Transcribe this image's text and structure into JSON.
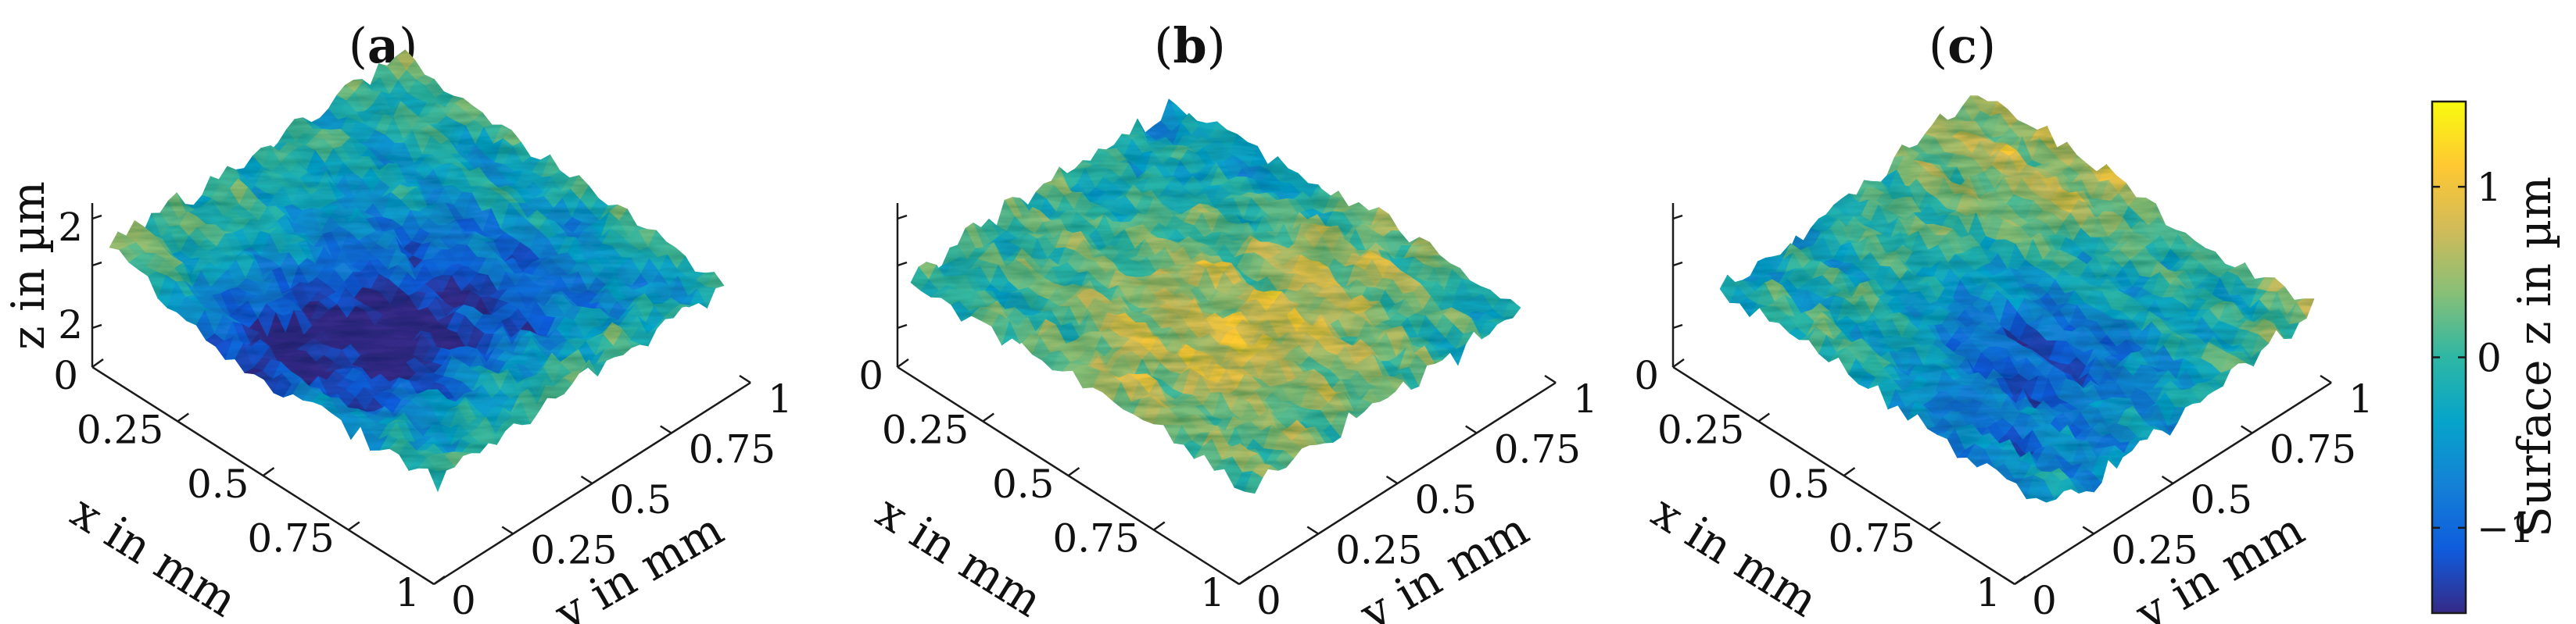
{
  "chart_data": [
    {
      "type": "surface3d",
      "panel_label": "a",
      "xlabel": "x in mm",
      "ylabel": "y in mm",
      "zlabel": "z in µm",
      "x_ticks": [
        "0",
        "0.25",
        "0.5",
        "0.75",
        "1"
      ],
      "y_ticks": [
        "0",
        "0.25",
        "0.5",
        "0.75",
        "1"
      ],
      "z_ticks": [
        "2",
        "2"
      ],
      "xlim": [
        0,
        1
      ],
      "ylim": [
        0,
        1
      ],
      "z_range_um": [
        -1.5,
        1.5
      ]
    },
    {
      "type": "surface3d",
      "panel_label": "b",
      "xlabel": "x in mm",
      "ylabel": "y in mm",
      "zlabel": "",
      "x_ticks": [
        "0",
        "0.25",
        "0.5",
        "0.75",
        "1"
      ],
      "y_ticks": [
        "0",
        "0.25",
        "0.5",
        "0.75",
        "1"
      ],
      "z_ticks": [],
      "xlim": [
        0,
        1
      ],
      "ylim": [
        0,
        1
      ],
      "z_range_um": [
        -1.5,
        1.5
      ]
    },
    {
      "type": "surface3d",
      "panel_label": "c",
      "xlabel": "x in mm",
      "ylabel": "y in mm",
      "zlabel": "",
      "x_ticks": [
        "0",
        "0.25",
        "0.5",
        "0.75",
        "1"
      ],
      "y_ticks": [
        "0",
        "0.25",
        "0.5",
        "0.75",
        "1"
      ],
      "z_ticks": [],
      "xlim": [
        0,
        1
      ],
      "ylim": [
        0,
        1
      ],
      "z_range_um": [
        -1.5,
        1.5
      ]
    }
  ],
  "colorbar": {
    "label": "Surface z in µm",
    "ticks": [
      "1",
      "0",
      "−1"
    ],
    "tick_values": [
      1,
      0,
      -1
    ],
    "range": [
      -1.5,
      1.5
    ],
    "colormap": "parula",
    "colors": [
      "#352a87",
      "#0f5cdd",
      "#1481d6",
      "#06a4ca",
      "#2eb7a4",
      "#87bf77",
      "#d1bb59",
      "#fec832",
      "#f9fb0e"
    ]
  }
}
